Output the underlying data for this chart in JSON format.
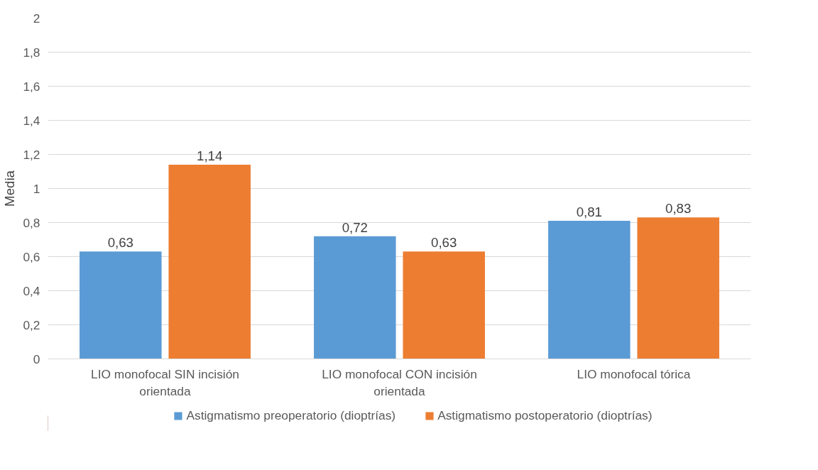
{
  "chart_data": {
    "type": "bar",
    "ylabel": "Media",
    "categories": [
      "LIO monofocal SIN incisión\norientada",
      "LIO monofocal CON incisión\norientada",
      "LIO monofocal tórica"
    ],
    "series": [
      {
        "name": "Astigmatismo preoperatorio (dioptrías)",
        "color": "#5b9bd5",
        "values": [
          0.63,
          0.72,
          0.81
        ],
        "value_labels": [
          "0,63",
          "0,72",
          "0,81"
        ]
      },
      {
        "name": "Astigmatismo postoperatorio (dioptrías)",
        "color": "#ed7d31",
        "values": [
          1.14,
          0.63,
          0.83
        ],
        "value_labels": [
          "1,14",
          "0,63",
          "0,83"
        ]
      }
    ],
    "ylim": [
      0,
      2
    ],
    "yticks": [
      0,
      {
        "value": 0.2,
        "label": "0,2"
      },
      {
        "value": 0.4,
        "label": "0,4"
      },
      {
        "value": 0.6,
        "label": "0,6"
      },
      {
        "value": 0.8,
        "label": "0,8"
      },
      1,
      {
        "value": 1.2,
        "label": "1,2"
      },
      {
        "value": 1.4,
        "label": "1,4"
      },
      {
        "value": 1.6,
        "label": "1,6"
      },
      {
        "value": 1.8,
        "label": "1,8"
      },
      2
    ],
    "grid": "y",
    "legend": "bottom"
  }
}
